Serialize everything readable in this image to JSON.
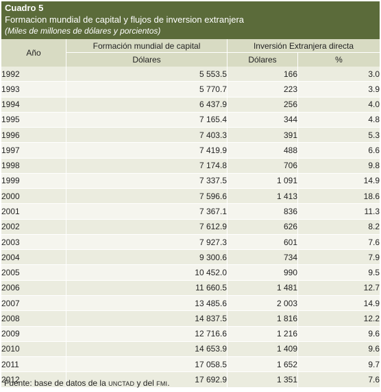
{
  "header": {
    "label": "Cuadro 5",
    "title": "Formacion mundial de capital y flujos de inversion extranjera",
    "subtitle": "(Miles de millones de dólares y porcientos)"
  },
  "columns": {
    "year": "Año",
    "capital_group": "Formación mundial de capital",
    "capital_unit": "Dólares",
    "fdi_group": "Inversión Extranjera directa",
    "fdi_unit": "Dólares",
    "fdi_pct": "%"
  },
  "rows": [
    {
      "year": "1992",
      "capital": "5 553.5",
      "fdi": "166",
      "pct": "3.0"
    },
    {
      "year": "1993",
      "capital": "5 770.7",
      "fdi": "223",
      "pct": "3.9"
    },
    {
      "year": "1994",
      "capital": "6 437.9",
      "fdi": "256",
      "pct": "4.0"
    },
    {
      "year": "1995",
      "capital": "7 165.4",
      "fdi": "344",
      "pct": "4.8"
    },
    {
      "year": "1996",
      "capital": "7 403.3",
      "fdi": "391",
      "pct": "5.3"
    },
    {
      "year": "1997",
      "capital": "7 419.9",
      "fdi": "488",
      "pct": "6.6"
    },
    {
      "year": "1998",
      "capital": "7 174.8",
      "fdi": "706",
      "pct": "9.8"
    },
    {
      "year": "1999",
      "capital": "7 337.5",
      "fdi": "1 091",
      "pct": "14.9"
    },
    {
      "year": "2000",
      "capital": "7 596.6",
      "fdi": "1 413",
      "pct": "18.6"
    },
    {
      "year": "2001",
      "capital": "7 367.1",
      "fdi": "836",
      "pct": "11.3"
    },
    {
      "year": "2002",
      "capital": "7 612.9",
      "fdi": "626",
      "pct": "8.2"
    },
    {
      "year": "2003",
      "capital": "7 927.3",
      "fdi": "601",
      "pct": "7.6"
    },
    {
      "year": "2004",
      "capital": "9 300.6",
      "fdi": "734",
      "pct": "7.9"
    },
    {
      "year": "2005",
      "capital": "10 452.0",
      "fdi": "990",
      "pct": "9.5"
    },
    {
      "year": "2006",
      "capital": "11 660.5",
      "fdi": "1 481",
      "pct": "12.7"
    },
    {
      "year": "2007",
      "capital": "13 485.6",
      "fdi": "2 003",
      "pct": "14.9"
    },
    {
      "year": "2008",
      "capital": "14 837.5",
      "fdi": "1 816",
      "pct": "12.2"
    },
    {
      "year": "2009",
      "capital": "12 716.6",
      "fdi": "1 216",
      "pct": "9.6"
    },
    {
      "year": "2010",
      "capital": "14 653.9",
      "fdi": "1 409",
      "pct": "9.6"
    },
    {
      "year": "2011",
      "capital": "17 058.5",
      "fdi": "1 652",
      "pct": "9.7"
    },
    {
      "year": "2012",
      "capital": "17 692.9",
      "fdi": "1 351",
      "pct": "7.6"
    }
  ],
  "source": {
    "prefix": "Fuente: base de datos de la ",
    "org1": "UNCTAD",
    "middle": " y del ",
    "org2": "FMI",
    "suffix": "."
  },
  "colors": {
    "header_bg": "#5b6b3a",
    "column_header_bg": "#d8dbc3",
    "row_odd_bg": "#ebecdf",
    "row_even_bg": "#f5f5ee"
  }
}
